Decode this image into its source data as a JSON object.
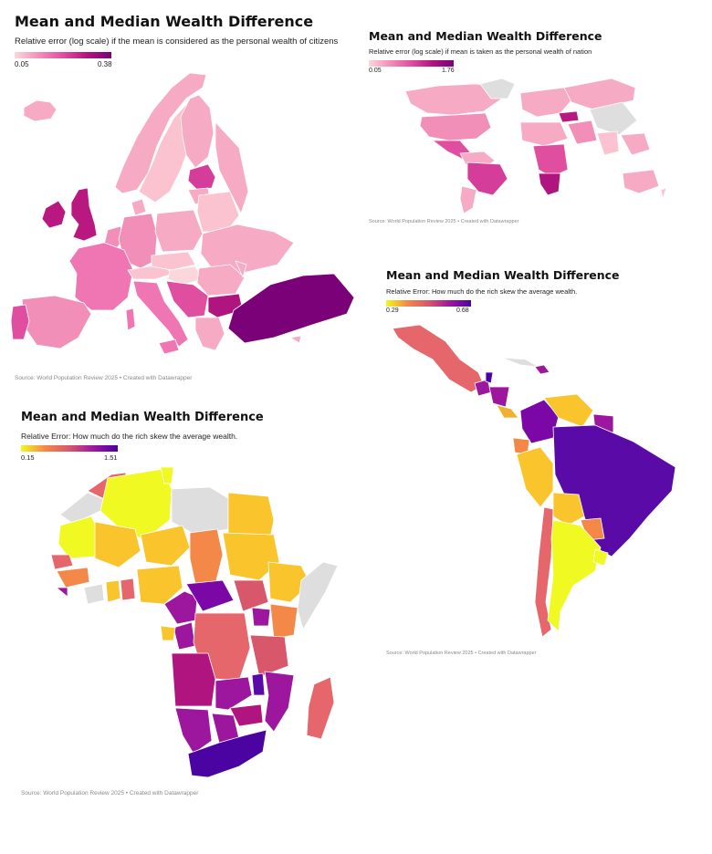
{
  "europe": {
    "title": "Mean and Median Wealth Difference",
    "subtitle": "Relative error (log scale) if the mean is considered as the personal wealth of citizens",
    "legend_min": "0.05",
    "legend_max": "0.38",
    "source": "Source: World Population Review 2025 • Created with Datawrapper",
    "colors": {
      "low": "#fbd7dc",
      "high": "#7a0177"
    }
  },
  "world": {
    "title": "Mean and Median Wealth Difference",
    "subtitle": "Relative error (log scale) if mean is taken as the personal wealth of nation",
    "legend_min": "0.05",
    "legend_max": "1.76",
    "source": "Source: World Population Review 2025 • Created with Datawrapper",
    "colors": {
      "low": "#fbd7dc",
      "high": "#7a0177",
      "no_data": "#dedede"
    }
  },
  "latam": {
    "title": "Mean and Median Wealth Difference",
    "subtitle": "Relative Error: How much do the rich skew the average wealth.",
    "legend_min": "0.29",
    "legend_max": "0.68",
    "source": "Source: World Population Review 2025 • Created with Datawrapper",
    "colors": {
      "low": "#f0f921",
      "high": "#4b03a1",
      "no_data": "#dedede"
    }
  },
  "africa": {
    "title": "Mean and Median Wealth Difference",
    "subtitle": "Relative Error: How much do the rich skew the average wealth.",
    "legend_min": "0.15",
    "legend_max": "1.51",
    "source": "Source: World Population Review 2025 • Created with Datawrapper",
    "colors": {
      "low": "#f0f921",
      "high": "#4b03a1",
      "no_data": "#dedede"
    }
  }
}
